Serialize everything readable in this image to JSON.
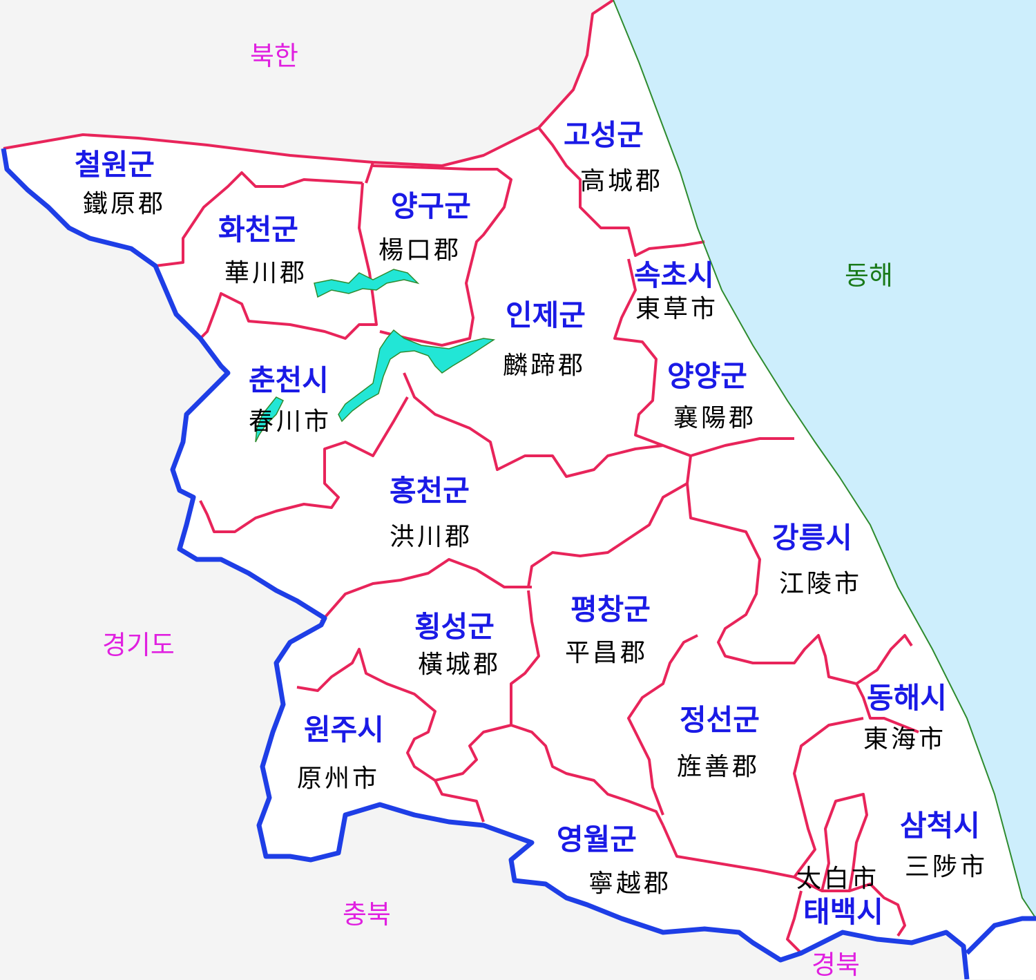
{
  "colors": {
    "sea": "#cdeefc",
    "land": "#ffffff",
    "outside": "#f4f4f4",
    "provincial_border": "#1e3ee6",
    "county_border": "#e8245a",
    "coastline": "#2e8b2e",
    "lake": "#22e6d6",
    "county_name_korean": "#1a1ae6",
    "county_name_hanja": "#000000",
    "neighbor_label": "#e020e0",
    "sea_label": "#1a7a1a"
  },
  "neighbors": {
    "north": "북한",
    "west": "경기도",
    "south": "충북",
    "southeast": "경북"
  },
  "sea": {
    "label": "동해"
  },
  "regions": {
    "cheorwon": {
      "korean": "철원군",
      "hanja": "鐵原郡"
    },
    "hwacheon": {
      "korean": "화천군",
      "hanja": "華川郡"
    },
    "yanggu": {
      "korean": "양구군",
      "hanja": "楊口郡"
    },
    "goseong": {
      "korean": "고성군",
      "hanja": "高城郡"
    },
    "sokcho": {
      "korean": "속초시",
      "hanja": "東草市"
    },
    "inje": {
      "korean": "인제군",
      "hanja": "麟蹄郡"
    },
    "chuncheon": {
      "korean": "춘천시",
      "hanja": "春川市"
    },
    "yangyang": {
      "korean": "양양군",
      "hanja": "襄陽郡"
    },
    "hongcheon": {
      "korean": "홍천군",
      "hanja": "洪川郡"
    },
    "gangneung": {
      "korean": "강릉시",
      "hanja": "江陵市"
    },
    "hoengseong": {
      "korean": "횡성군",
      "hanja": "橫城郡"
    },
    "pyeongchang": {
      "korean": "평창군",
      "hanja": "平昌郡"
    },
    "wonju": {
      "korean": "원주시",
      "hanja": "原州市"
    },
    "jeongseon": {
      "korean": "정선군",
      "hanja": "旌善郡"
    },
    "donghae": {
      "korean": "동해시",
      "hanja": "東海市"
    },
    "yeongwol": {
      "korean": "영월군",
      "hanja": "寧越郡"
    },
    "samcheok": {
      "korean": "삼척시",
      "hanja": "三陟市"
    },
    "taebaek": {
      "korean": "태백시",
      "hanja": "太白市"
    }
  }
}
